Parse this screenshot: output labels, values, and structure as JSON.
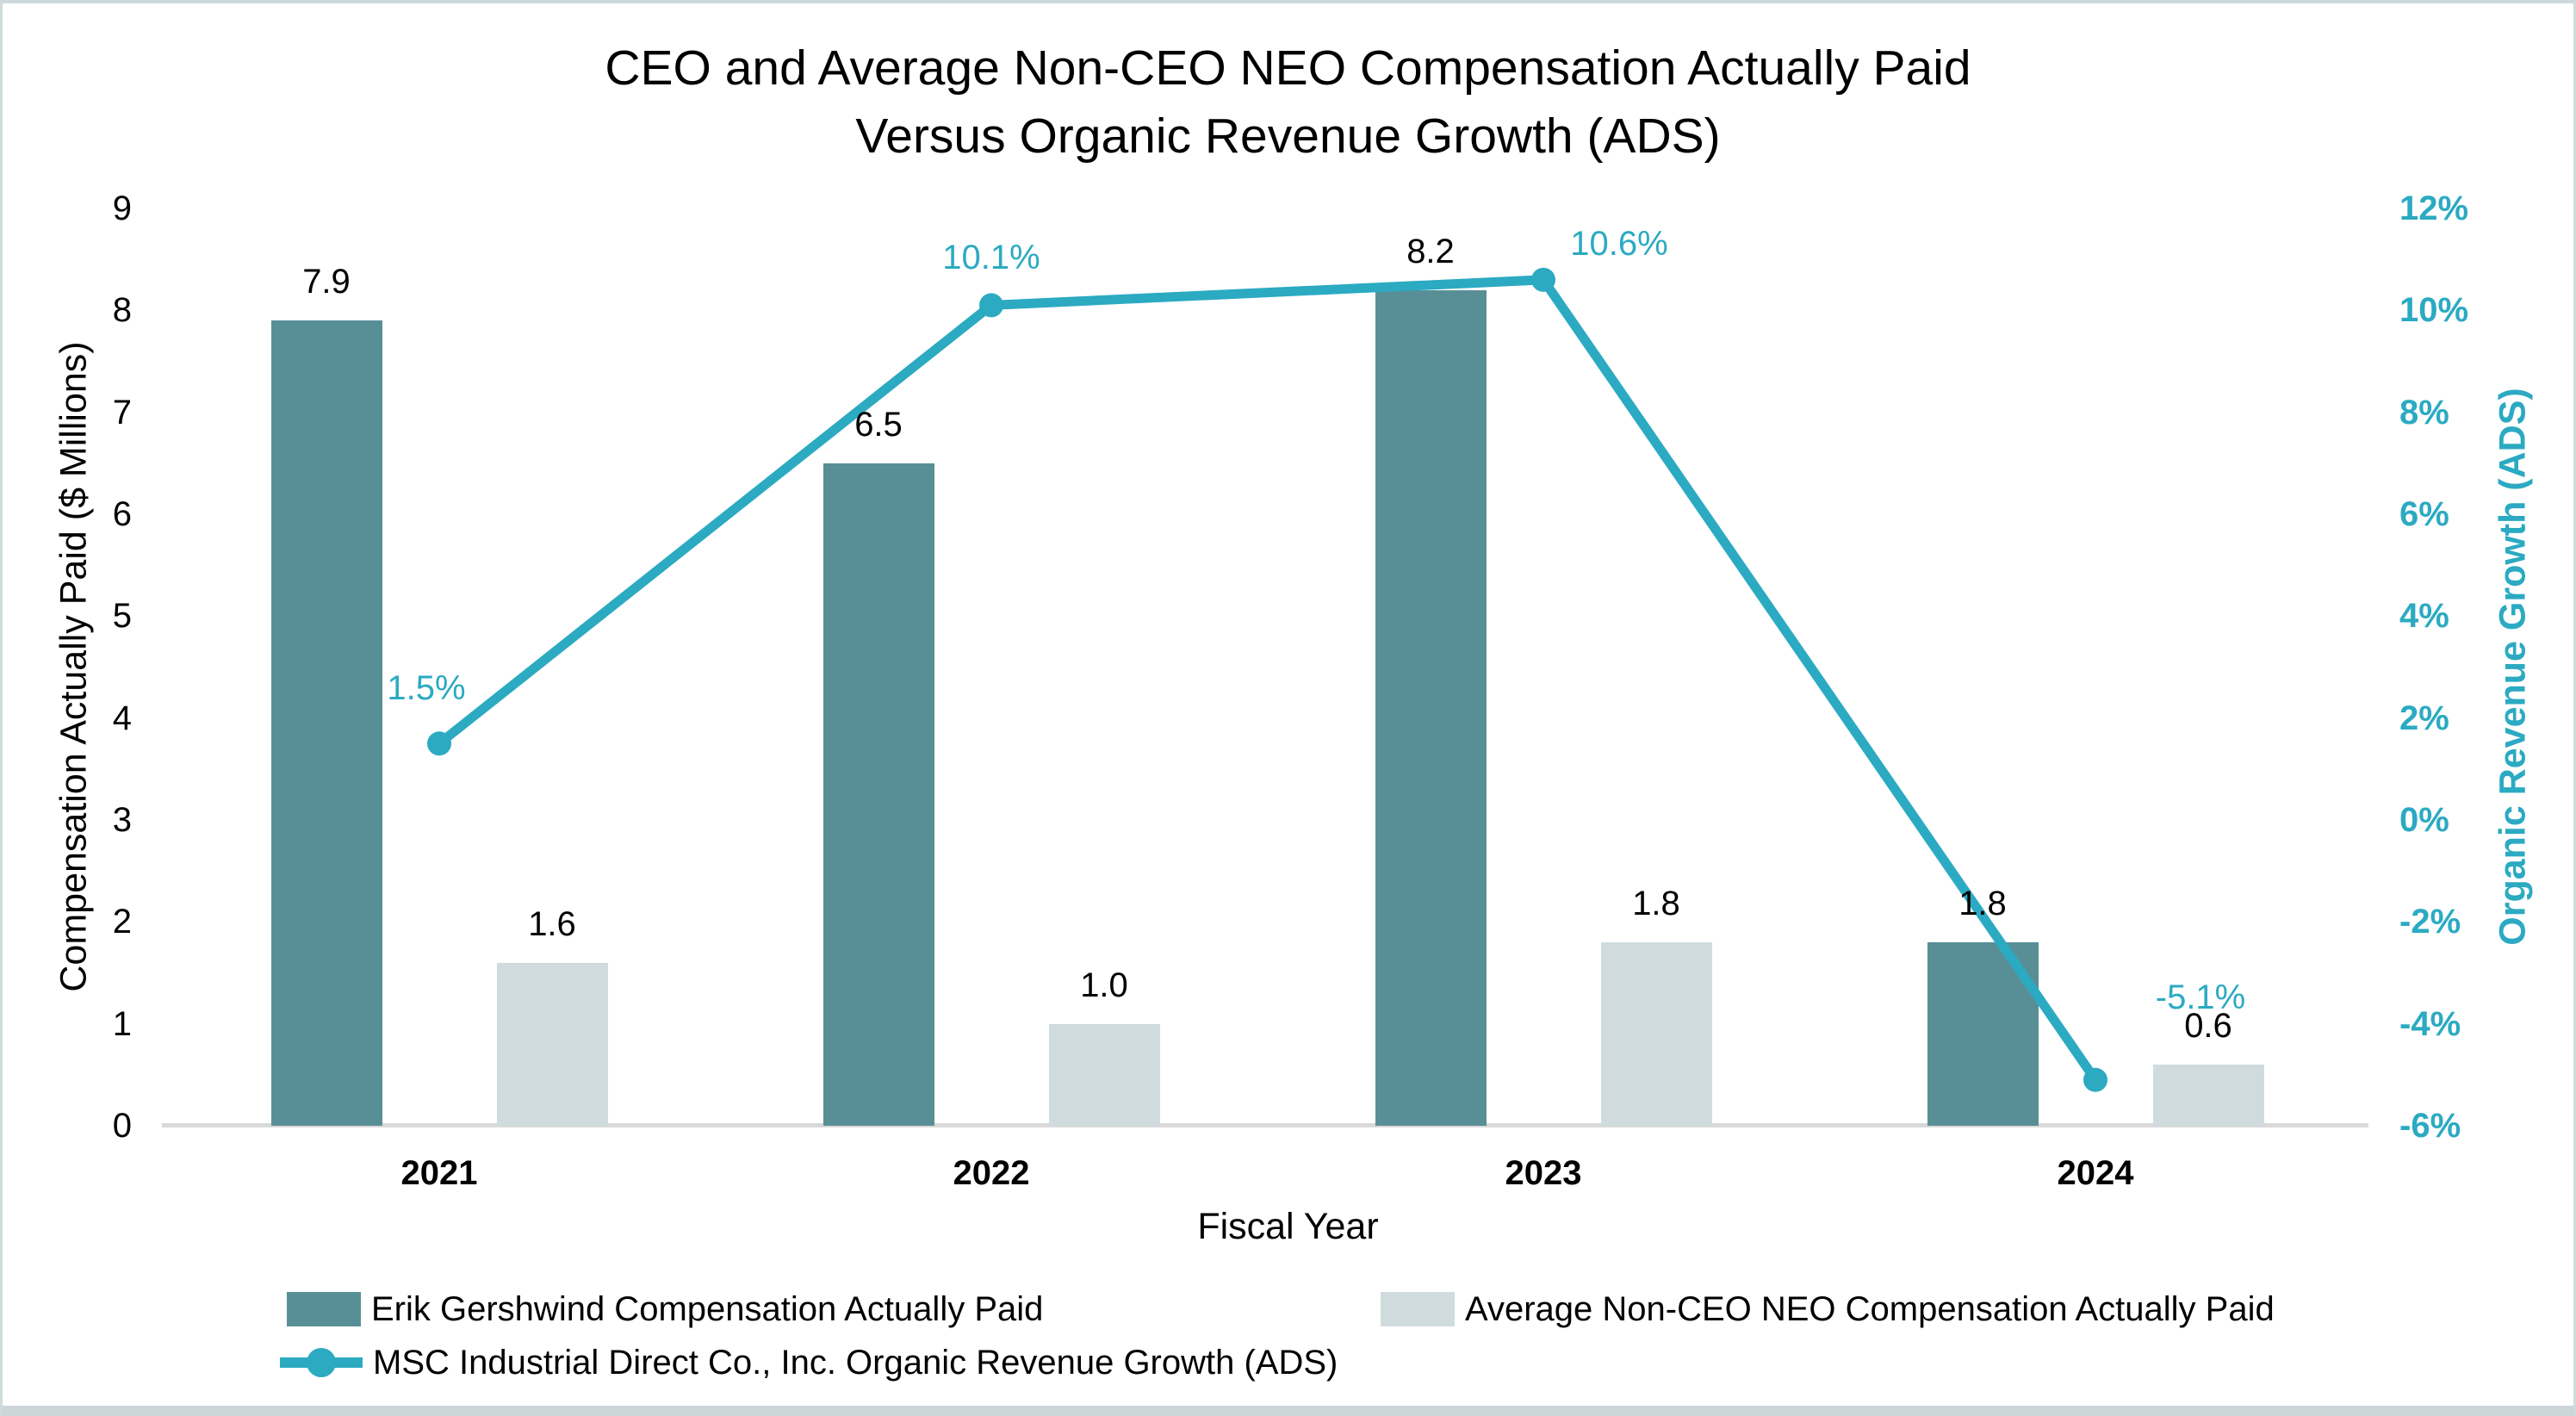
{
  "chart_data": {
    "type": "combo-bar-line",
    "title": "CEO and Average Non-CEO NEO Compensation Actually Paid\nVersus Organic Revenue Growth (ADS)",
    "categories": [
      "2021",
      "2022",
      "2023",
      "2024"
    ],
    "xlabel": "Fiscal Year",
    "grid": false,
    "legend_position": "bottom",
    "axis_line_color": "#D9D9D9",
    "left_axis": {
      "label": "Compensation Actually Paid ($ Millions)",
      "min": 0,
      "max": 9,
      "step": 1,
      "tick_labels": [
        "0",
        "1",
        "2",
        "3",
        "4",
        "5",
        "6",
        "7",
        "8",
        "9"
      ],
      "color": "#000000"
    },
    "right_axis": {
      "label": "Organic Revenue Growth (ADS)",
      "min": -6,
      "max": 12,
      "step": 2,
      "tick_labels": [
        "-6%",
        "-4%",
        "-2%",
        "0%",
        "2%",
        "4%",
        "6%",
        "8%",
        "10%",
        "12%"
      ],
      "color": "#2BAAC2"
    },
    "series": [
      {
        "name": "Erik Gershwind Compensation Actually Paid",
        "type": "bar",
        "axis": "left",
        "color": "#588F97",
        "values": [
          7.9,
          6.5,
          8.2,
          1.8
        ],
        "data_labels": [
          "7.9",
          "6.5",
          "8.2",
          "1.8"
        ]
      },
      {
        "name": "Average Non-CEO NEO Compensation Actually Paid",
        "type": "bar",
        "axis": "left",
        "color": "#D0DBDE",
        "values": [
          1.6,
          1.0,
          1.8,
          0.6
        ],
        "data_labels": [
          "1.6",
          "1.0",
          "1.8",
          "0.6"
        ]
      },
      {
        "name": "MSC Industrial Direct Co., Inc. Organic Revenue Growth (ADS)",
        "type": "line",
        "axis": "right",
        "color": "#2BAAC2",
        "values": [
          1.5,
          10.1,
          10.6,
          -5.1
        ],
        "data_labels": [
          "1.5%",
          "10.1%",
          "10.6%",
          "-5.1%"
        ],
        "label_offsets": [
          [
            -15,
            -64
          ],
          [
            0,
            -55
          ],
          [
            88,
            -42
          ],
          [
            122,
            -96
          ]
        ]
      }
    ]
  }
}
